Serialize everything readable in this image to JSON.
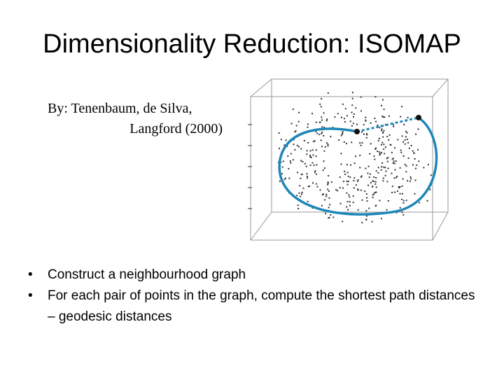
{
  "title": "Dimensionality Reduction: ISOMAP",
  "citation": [
    "By: Tenenbaum, de Silva,",
    "Langford (2000)"
  ],
  "bullets": [
    "Construct a neighbourhood graph",
    "For each pair of points in the graph, compute the shortest path distances – geodesic distances"
  ]
}
